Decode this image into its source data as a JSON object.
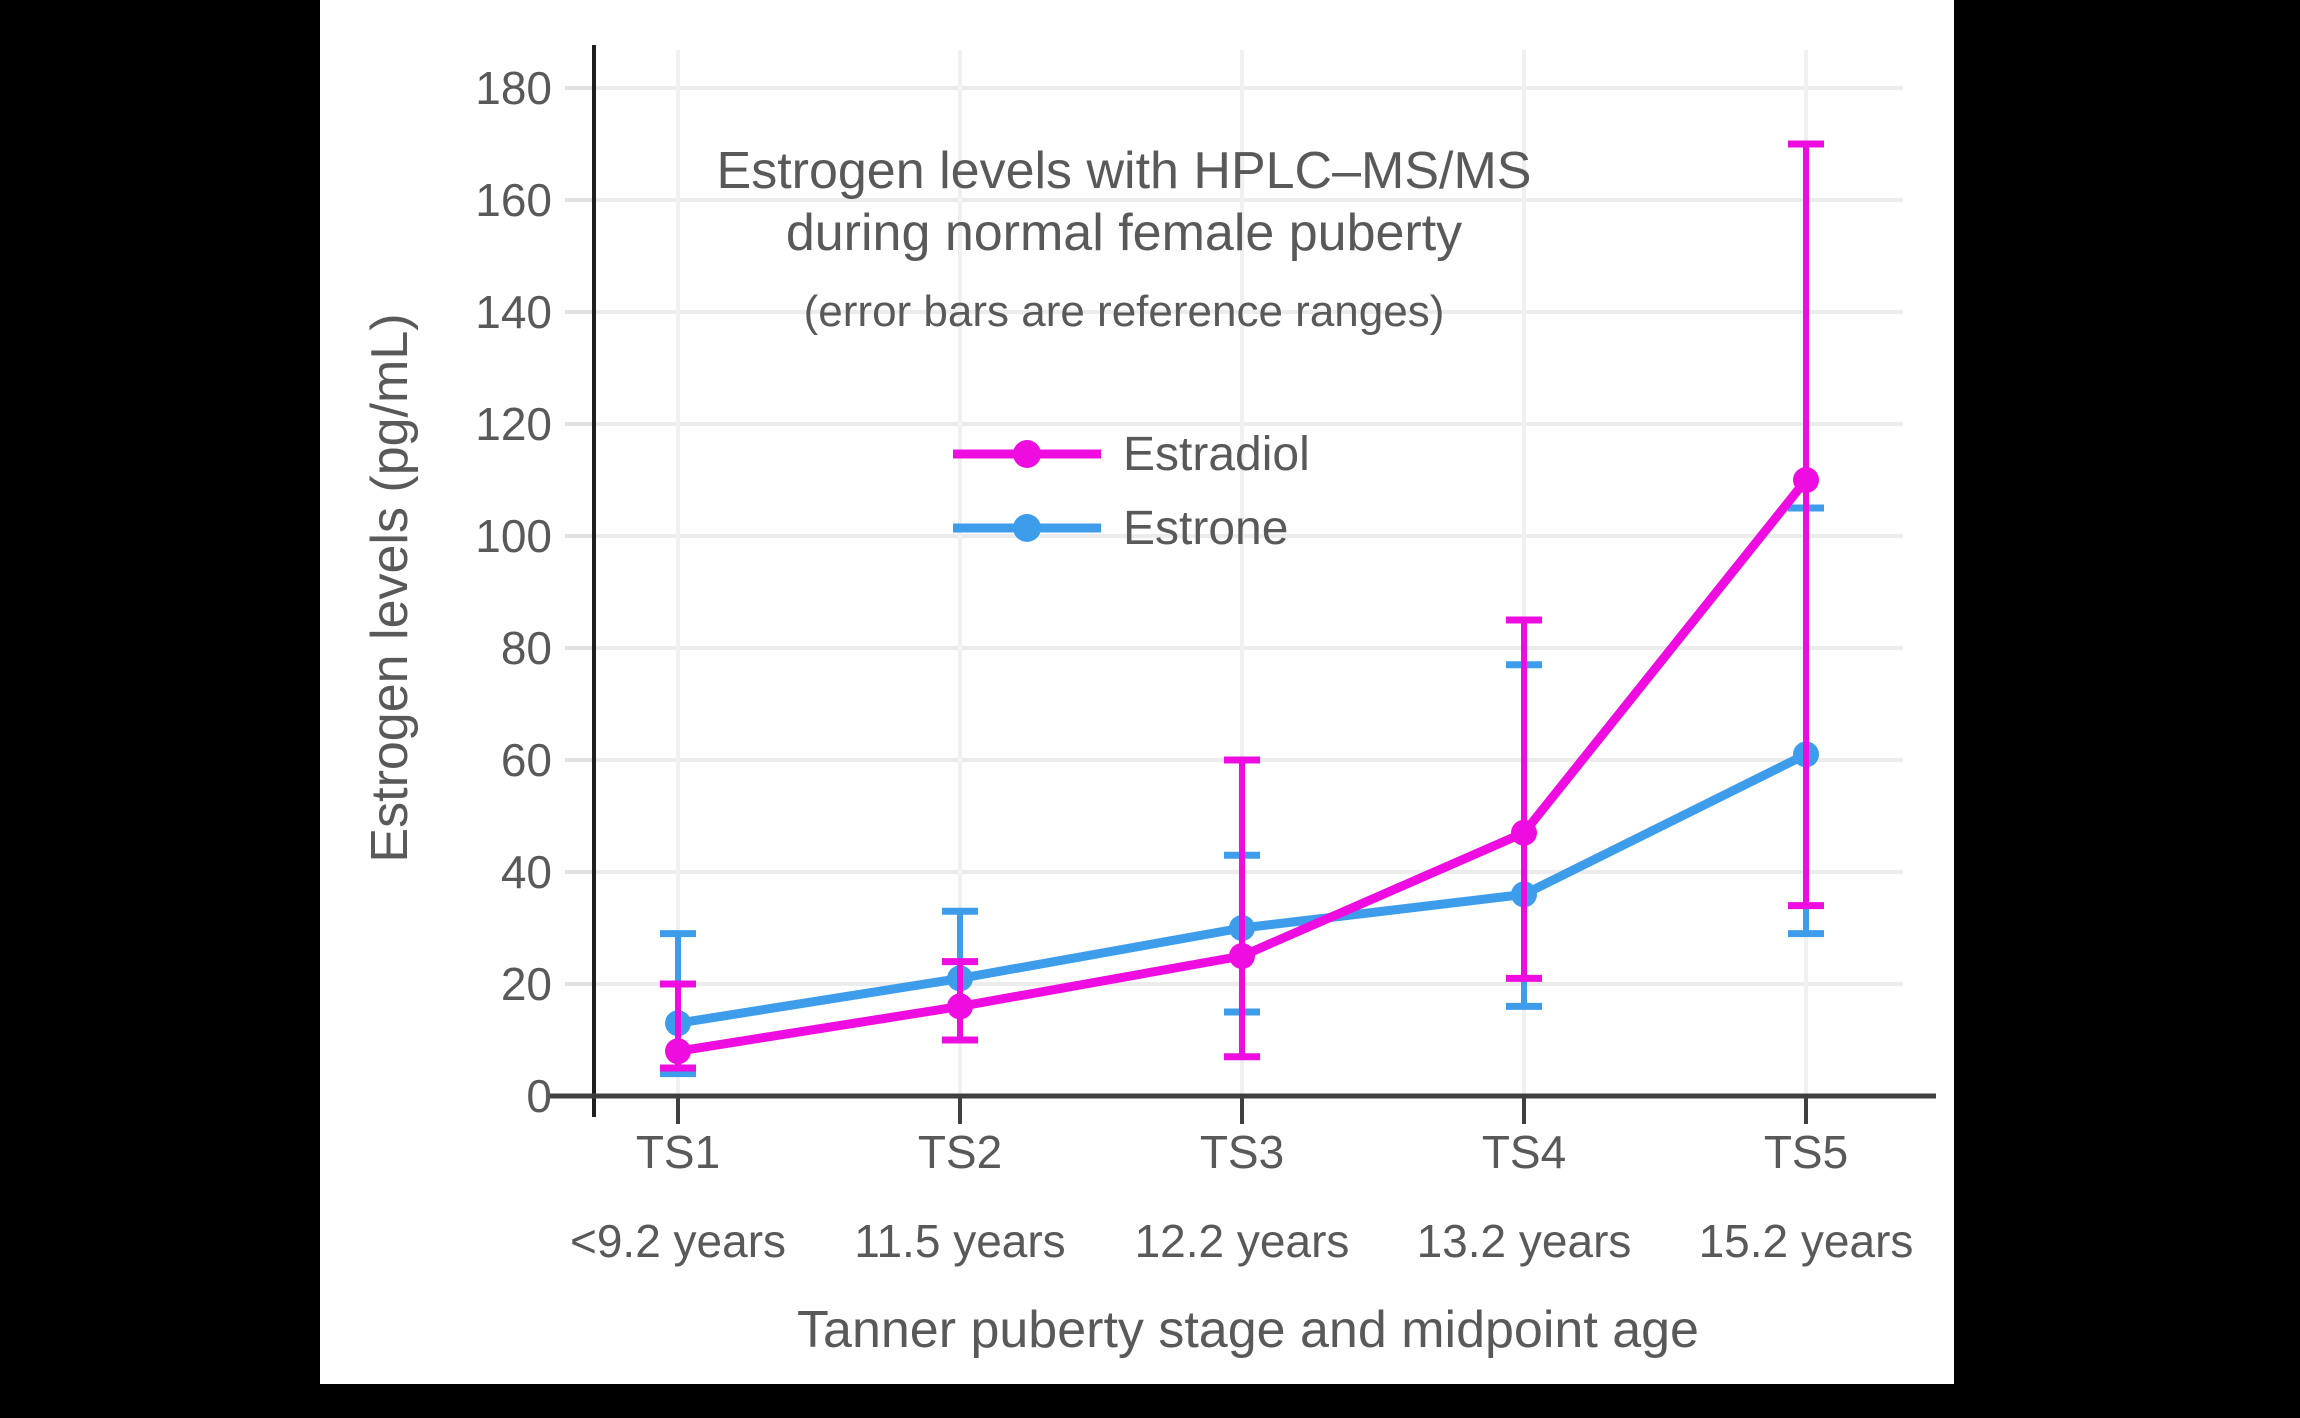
{
  "figure": {
    "background_color": "#000000",
    "canvas_color": "#ffffff"
  },
  "chart_data": {
    "type": "line",
    "title": "Estrogen levels with HPLC–MS/MS",
    "title_line2": "during normal female puberty",
    "subtitle": "(error bars are reference ranges)",
    "xlabel": "Tanner puberty stage and midpoint age",
    "ylabel": "Estrogen levels (pg/mL)",
    "categories": [
      "TS1",
      "TS2",
      "TS3",
      "TS4",
      "TS5"
    ],
    "category_ages": [
      "<9.2 years",
      "11.5 years",
      "12.2 years",
      "13.2 years",
      "15.2 years"
    ],
    "yticks": [
      0,
      20,
      40,
      60,
      80,
      100,
      120,
      140,
      160,
      180
    ],
    "ylim": [
      0,
      180
    ],
    "grid": true,
    "error_bar_meaning": "reference ranges",
    "series": [
      {
        "name": "Estrone",
        "color": "#3E9DEB",
        "values": [
          13,
          21,
          30,
          36,
          61
        ],
        "range_low": [
          4,
          10,
          15,
          16,
          29
        ],
        "range_high": [
          29,
          33,
          43,
          77,
          105
        ]
      },
      {
        "name": "Estradiol",
        "color": "#EE0CE0",
        "values": [
          8,
          16,
          25,
          47,
          110
        ],
        "range_low": [
          5,
          10,
          7,
          21,
          34
        ],
        "range_high": [
          20,
          24,
          60,
          85,
          170
        ]
      }
    ],
    "legend": {
      "position": "inside-upper-left",
      "items": [
        {
          "label": "Estradiol",
          "color": "#EE0CE0"
        },
        {
          "label": "Estrone",
          "color": "#3E9DEB"
        }
      ]
    },
    "style": {
      "text_color": "#595959",
      "grid_color": "#ececec",
      "y_axis_color": "#1f1f1f",
      "x_axis_color": "#3f3f3f"
    }
  }
}
